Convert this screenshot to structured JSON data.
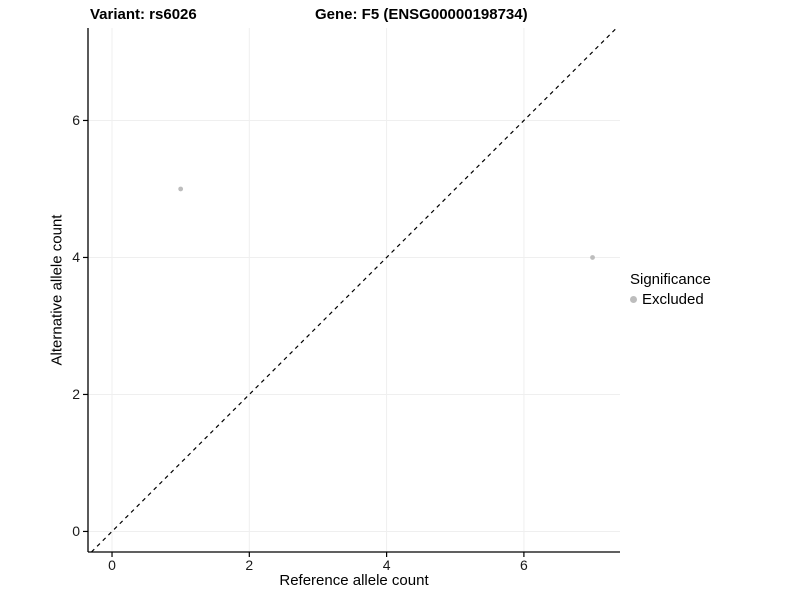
{
  "titles": {
    "variant": "Variant: rs6026",
    "gene": "Gene: F5 (ENSG00000198734)"
  },
  "axes": {
    "x_label": "Reference allele count",
    "y_label": "Alternative allele count"
  },
  "legend": {
    "title": "Significance",
    "items": [
      {
        "label": "Excluded",
        "color": "#bdbdbd"
      }
    ]
  },
  "colors": {
    "point": "#bdbdbd",
    "grid": "#efefef",
    "axis": "#000000",
    "reference_line": "#000000"
  },
  "chart_data": {
    "type": "scatter",
    "title": "Variant: rs6026 — Gene: F5 (ENSG00000198734)",
    "xlabel": "Reference allele count",
    "ylabel": "Alternative allele count",
    "xlim": [
      -0.35,
      7.4
    ],
    "ylim": [
      -0.3,
      7.35
    ],
    "x_ticks": [
      0,
      2,
      4,
      6
    ],
    "y_ticks": [
      0,
      2,
      4,
      6
    ],
    "grid": true,
    "legend_position": "right",
    "series": [
      {
        "name": "Excluded",
        "color": "#bdbdbd",
        "points": [
          {
            "x": 1,
            "y": 5
          },
          {
            "x": 7,
            "y": 4
          }
        ]
      }
    ],
    "reference_line": {
      "type": "identity",
      "style": "dashed",
      "color": "#000000"
    }
  }
}
